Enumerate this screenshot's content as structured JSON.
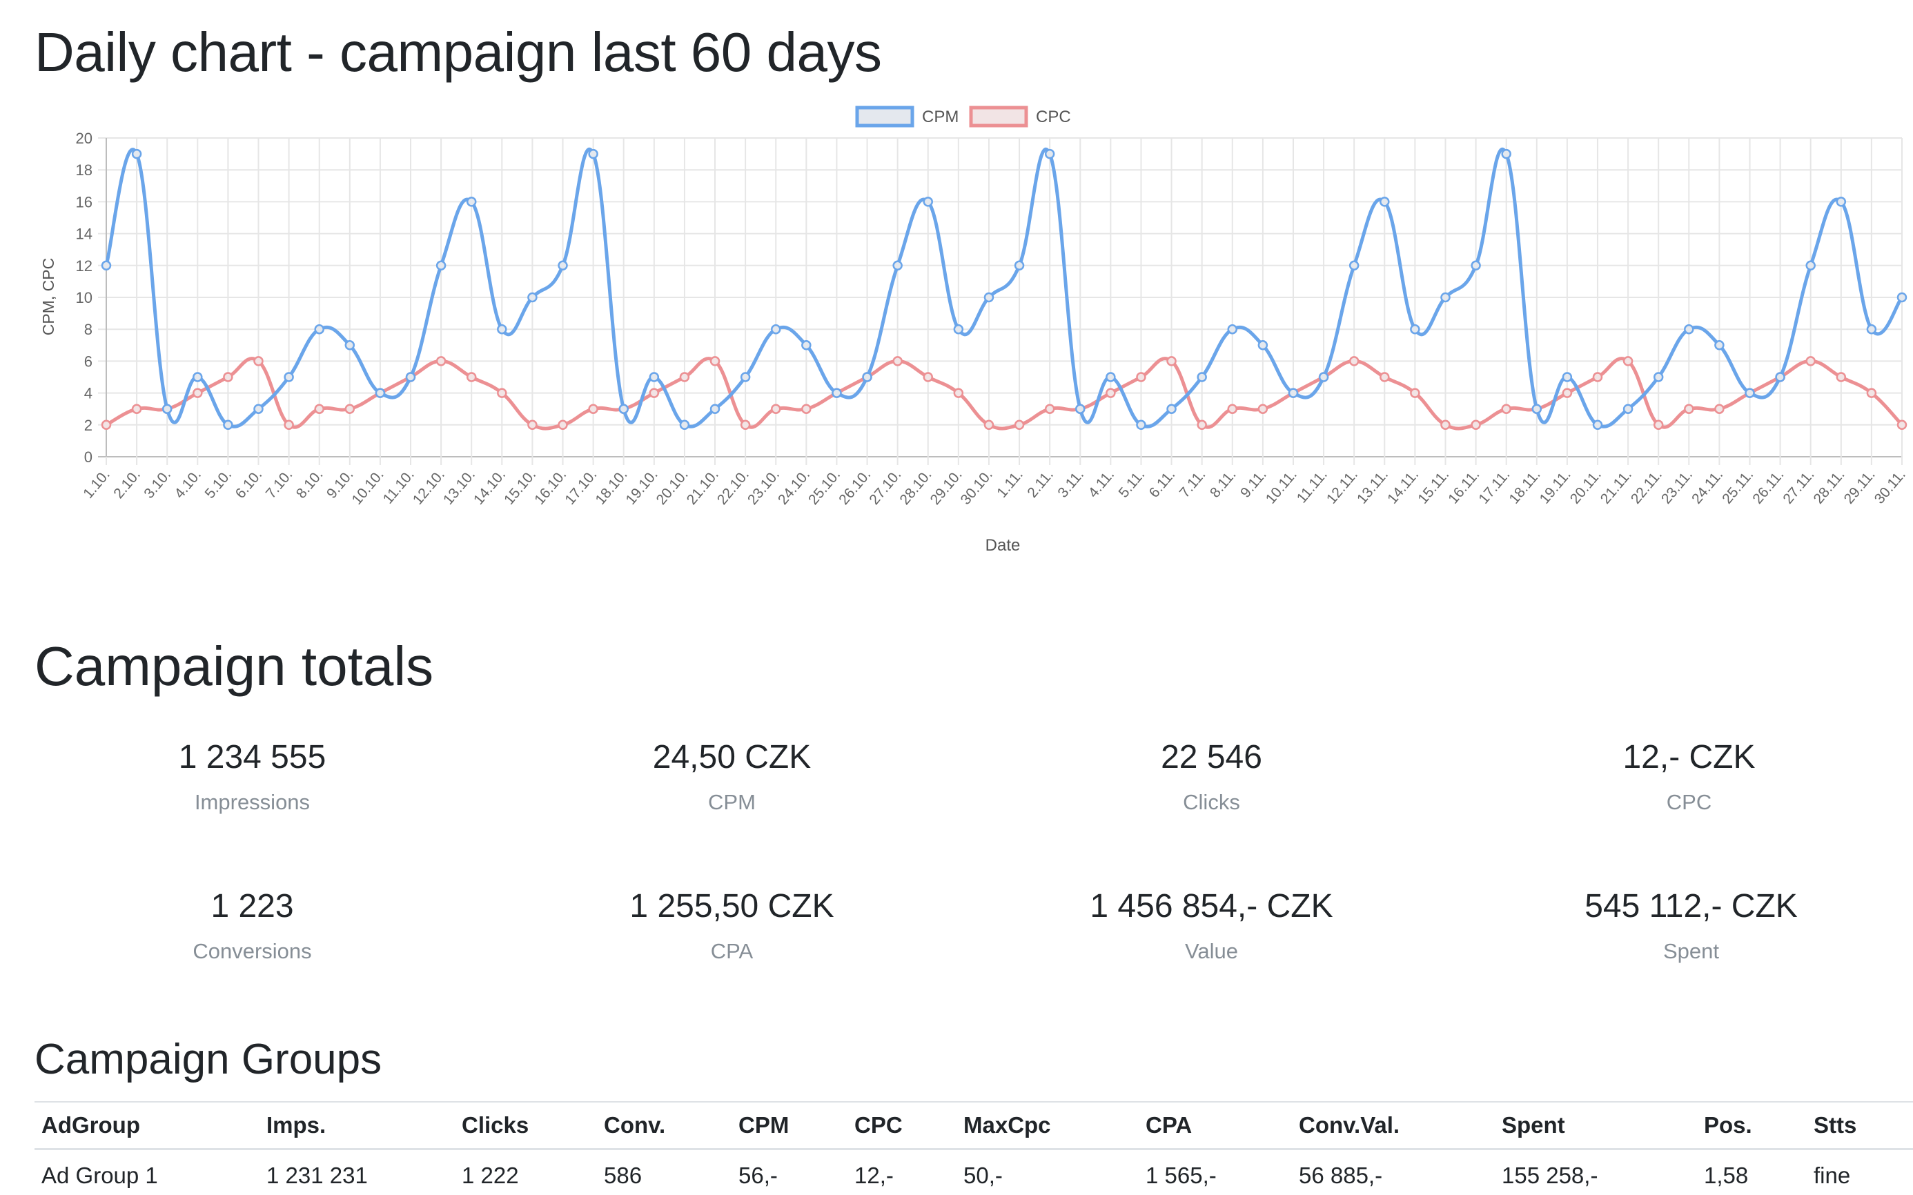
{
  "page": {
    "chart_heading": "Daily chart - campaign last 60 days",
    "totals_heading": "Campaign totals",
    "groups_heading": "Campaign Groups"
  },
  "chart_data": {
    "type": "line",
    "xlabel": "Date",
    "ylabel": "CPM, CPC",
    "ylim": [
      0,
      20
    ],
    "yticks": [
      0,
      2,
      4,
      6,
      8,
      10,
      12,
      14,
      16,
      18,
      20
    ],
    "grid": true,
    "legend_position": "top",
    "categories": [
      "1.10.",
      "2.10.",
      "3.10.",
      "4.10.",
      "5.10.",
      "6.10.",
      "7.10.",
      "8.10.",
      "9.10.",
      "10.10.",
      "11.10.",
      "12.10.",
      "13.10.",
      "14.10.",
      "15.10.",
      "16.10.",
      "17.10.",
      "18.10.",
      "19.10.",
      "20.10.",
      "21.10.",
      "22.10.",
      "23.10.",
      "24.10.",
      "25.10.",
      "26.10.",
      "27.10.",
      "28.10.",
      "29.10.",
      "30.10.",
      "1.11.",
      "2.11.",
      "3.11.",
      "4.11.",
      "5.11.",
      "6.11.",
      "7.11.",
      "8.11.",
      "9.11.",
      "10.11.",
      "11.11.",
      "12.11.",
      "13.11.",
      "14.11.",
      "15.11.",
      "16.11.",
      "17.11.",
      "18.11.",
      "19.11.",
      "20.11.",
      "21.11.",
      "22.11.",
      "23.11.",
      "24.11.",
      "25.11.",
      "26.11.",
      "27.11.",
      "28.11.",
      "29.11.",
      "30.11."
    ],
    "series": [
      {
        "name": "CPM",
        "color": "#6aa5ea",
        "fill": "#e4e8ee",
        "values": [
          12,
          19,
          3,
          5,
          2,
          3,
          5,
          8,
          7,
          4,
          5,
          12,
          16,
          8,
          10,
          12,
          19,
          3,
          5,
          2,
          3,
          5,
          8,
          7,
          4,
          5,
          12,
          16,
          8,
          10,
          12,
          19,
          3,
          5,
          2,
          3,
          5,
          8,
          7,
          4,
          5,
          12,
          16,
          8,
          10,
          12,
          19,
          3,
          5,
          2,
          3,
          5,
          8,
          7,
          4,
          5,
          12,
          16,
          8,
          10
        ]
      },
      {
        "name": "CPC",
        "color": "#ec9093",
        "fill": "#f2e4e5",
        "values": [
          2,
          3,
          3,
          4,
          5,
          6,
          2,
          3,
          3,
          4,
          5,
          6,
          5,
          4,
          2,
          2,
          3,
          3,
          4,
          5,
          6,
          2,
          3,
          3,
          4,
          5,
          6,
          5,
          4,
          2,
          2,
          3,
          3,
          4,
          5,
          6,
          2,
          3,
          3,
          4,
          5,
          6,
          5,
          4,
          2,
          2,
          3,
          3,
          4,
          5,
          6,
          2,
          3,
          3,
          4,
          5,
          6,
          5,
          4,
          2
        ]
      }
    ]
  },
  "totals": [
    {
      "value": "1 234 555",
      "label": "Impressions"
    },
    {
      "value": "24,50 CZK",
      "label": "CPM"
    },
    {
      "value": "22 546",
      "label": "Clicks"
    },
    {
      "value": "12,- CZK",
      "label": "CPC"
    },
    {
      "value": "1 223",
      "label": "Conversions"
    },
    {
      "value": "1 255,50 CZK",
      "label": "CPA"
    },
    {
      "value": "1 456 854,- CZK",
      "label": "Value"
    },
    {
      "value": "545 112,- CZK",
      "label": "Spent"
    }
  ],
  "groups_table": {
    "headers": [
      "AdGroup",
      "Imps.",
      "Clicks",
      "Conv.",
      "CPM",
      "CPC",
      "MaxCpc",
      "CPA",
      "Conv.Val.",
      "Spent",
      "Pos.",
      "Stts"
    ],
    "rows": [
      [
        "Ad Group 1",
        "1 231 231",
        "1 222",
        "586",
        "56,-",
        "12,-",
        "50,-",
        "1 565,-",
        "56 885,-",
        "155 258,-",
        "1,58",
        "fine"
      ]
    ]
  }
}
